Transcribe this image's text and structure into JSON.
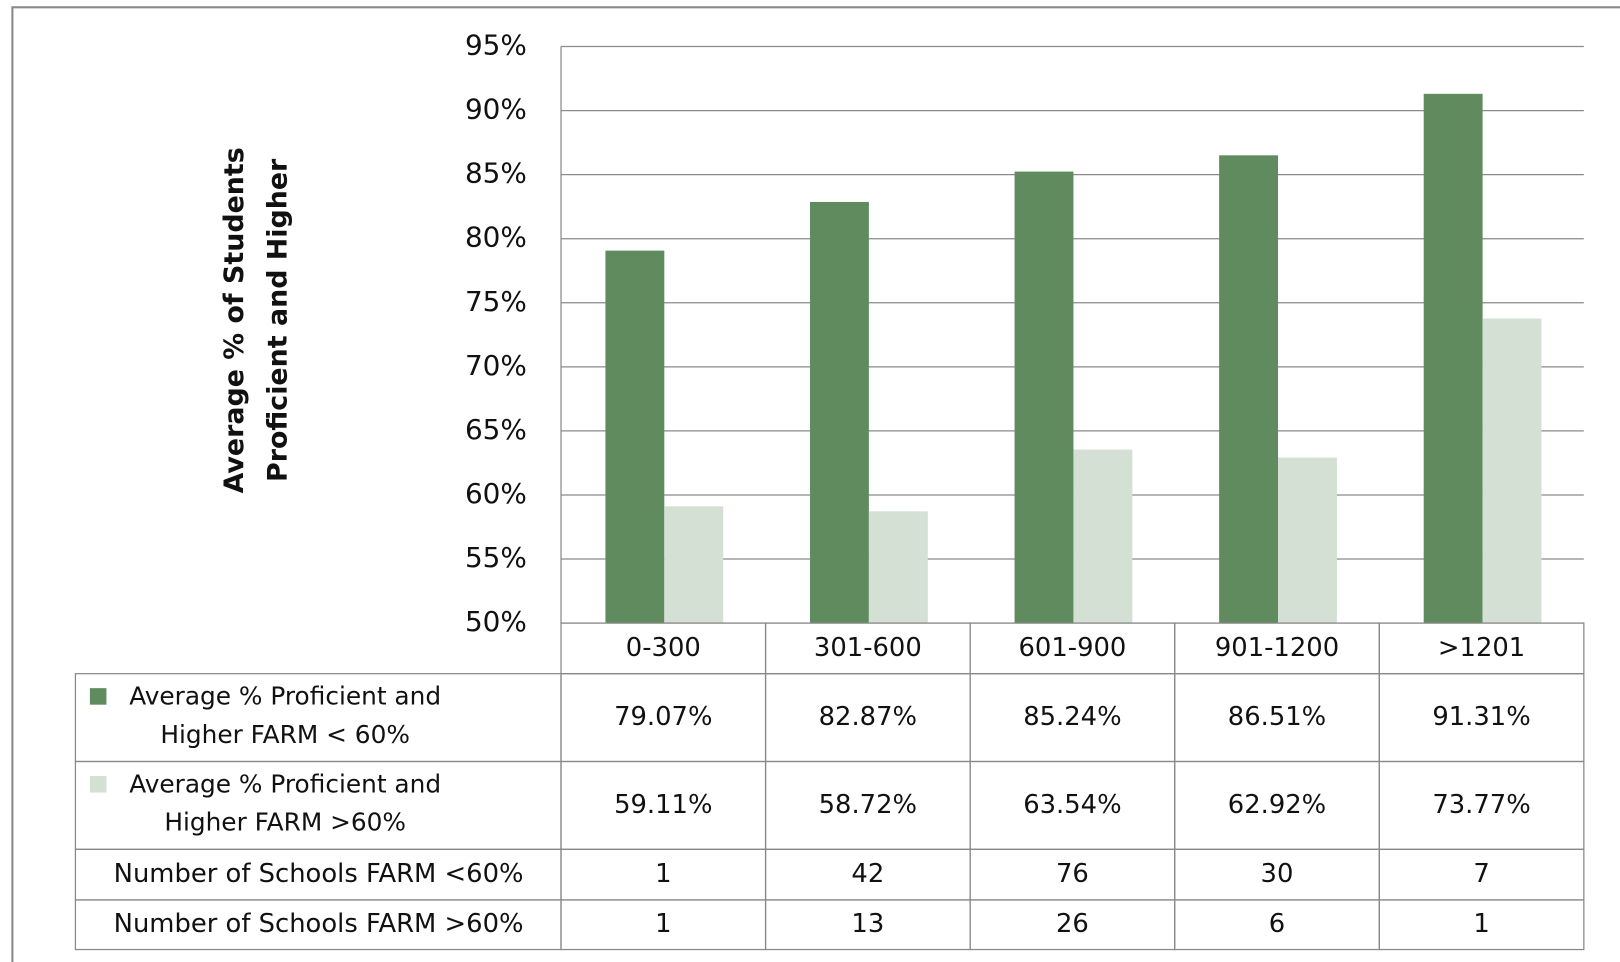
{
  "chart_data": {
    "type": "bar",
    "y_label_lines": [
      "Average % of Students",
      "Proficient and Higher"
    ],
    "categories": [
      "0-300",
      "301-600",
      "601-900",
      "901-1200",
      ">1201"
    ],
    "series": [
      {
        "name": "Average % Proficient and Higher FARM < 60%",
        "color": "#5f8b5f",
        "values": [
          79.07,
          82.87,
          85.24,
          86.51,
          91.31
        ],
        "value_labels": [
          "79.07%",
          "82.87%",
          "85.24%",
          "86.51%",
          "91.31%"
        ]
      },
      {
        "name": "Average % Proficient and Higher FARM >60%",
        "color": "#d3e0d3",
        "values": [
          59.11,
          58.72,
          63.54,
          62.92,
          73.77
        ],
        "value_labels": [
          "59.11%",
          "58.72%",
          "63.54%",
          "62.92%",
          "73.77%"
        ]
      }
    ],
    "table_rows": [
      {
        "label": "Number of Schools FARM <60%",
        "values": [
          1,
          42,
          76,
          30,
          7
        ]
      },
      {
        "label": "Number of Schools FARM >60%",
        "values": [
          1,
          13,
          26,
          6,
          1
        ]
      }
    ],
    "ylim": [
      50,
      95
    ],
    "yticks": [
      {
        "value": 50,
        "label": "50%"
      },
      {
        "value": 55,
        "label": "55%"
      },
      {
        "value": 60,
        "label": "60%"
      },
      {
        "value": 65,
        "label": "65%"
      },
      {
        "value": 70,
        "label": "70%"
      },
      {
        "value": 75,
        "label": "75%"
      },
      {
        "value": 80,
        "label": "80%"
      },
      {
        "value": 85,
        "label": "85%"
      },
      {
        "value": 90,
        "label": "90%"
      },
      {
        "value": 95,
        "label": "95%"
      }
    ],
    "grid": true
  }
}
